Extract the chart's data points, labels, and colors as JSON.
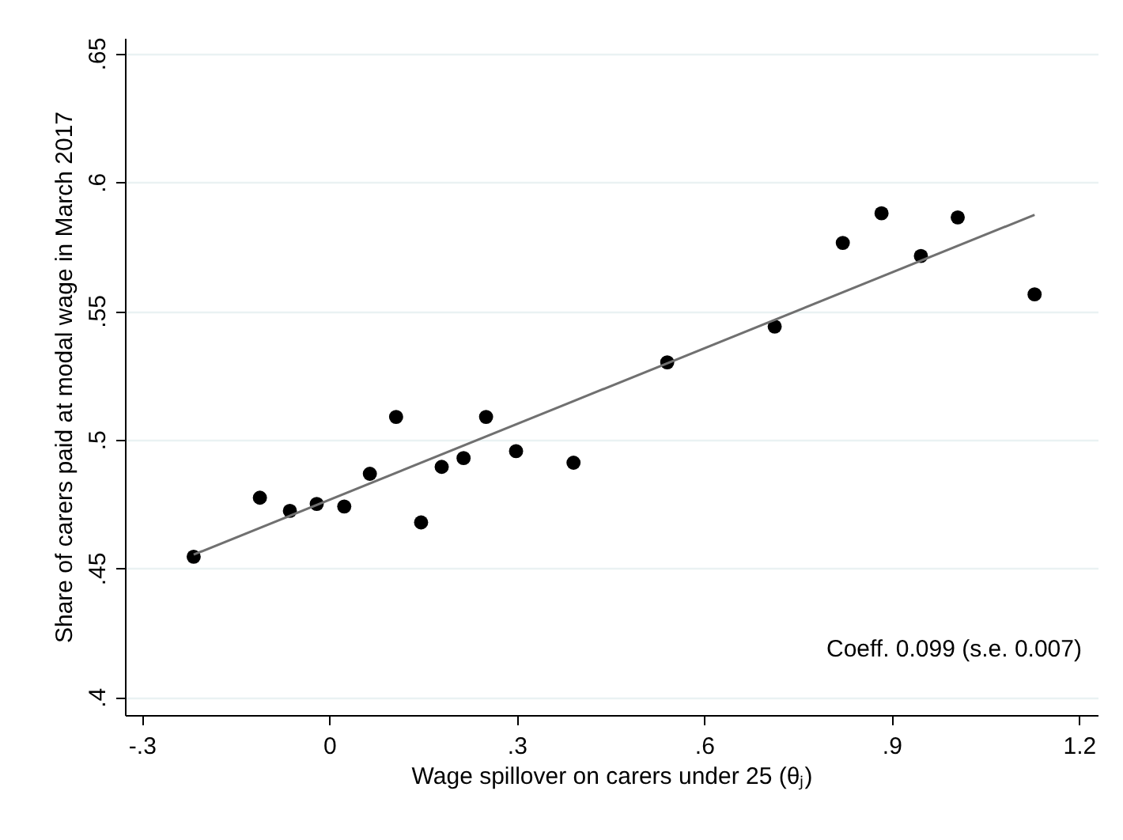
{
  "chart_data": {
    "type": "scatter",
    "xlabel": "Wage spillover on carers under 25 (θⱼ)",
    "ylabel": "Share of carers paid at modal wage in March 2017",
    "annotations": [
      "Coeff. 0.099 (s.e. 0.007)"
    ],
    "xlim": [
      -0.327,
      1.23
    ],
    "ylim": [
      0.393,
      0.656
    ],
    "xticks": [
      {
        "value": -0.3,
        "label": "-.3"
      },
      0,
      {
        "value": 0.3,
        "label": ".3"
      },
      {
        "value": 0.6,
        "label": ".6"
      },
      {
        "value": 0.9,
        "label": ".9"
      },
      {
        "value": 1.2,
        "label": "1.2"
      }
    ],
    "yticks": [
      {
        "value": 0.4,
        "label": ".4"
      },
      {
        "value": 0.45,
        "label": ".45"
      },
      {
        "value": 0.5,
        "label": ".5"
      },
      {
        "value": 0.55,
        "label": ".55"
      },
      {
        "value": 0.6,
        "label": ".6"
      },
      {
        "value": 0.65,
        "label": ".65"
      }
    ],
    "grid": "y",
    "marker": "circle",
    "x": [
      -0.217,
      -0.111,
      -0.063,
      -0.02,
      0.024,
      0.065,
      0.107,
      0.147,
      0.18,
      0.215,
      0.251,
      0.299,
      0.391,
      0.541,
      0.713,
      0.822,
      0.884,
      0.947,
      1.006,
      1.129
    ],
    "series": [
      {
        "color": "#000000",
        "values": [
          0.4545,
          0.4774,
          0.4723,
          0.475,
          0.474,
          0.4867,
          0.5088,
          0.4678,
          0.4894,
          0.4928,
          0.5088,
          0.4955,
          0.491,
          0.53,
          0.5439,
          0.5764,
          0.5879,
          0.5713,
          0.5863,
          0.5564
        ]
      },
      {
        "type": "line",
        "color": "#707070",
        "x": [
          -0.217,
          1.129
        ],
        "values": [
          0.4553,
          0.5873
        ],
        "marker": "none",
        "line_style": "solid"
      }
    ]
  }
}
